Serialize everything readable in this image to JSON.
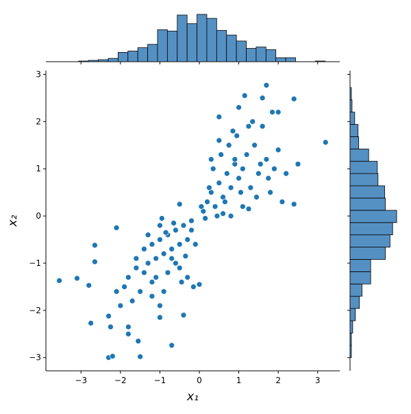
{
  "chart_data": {
    "type": "scatter",
    "xlabel": "x₁",
    "ylabel": "x₂",
    "xlim": [
      -3.89,
      3.56
    ],
    "ylim": [
      -3.28,
      3.08
    ],
    "xticks": [
      {
        "value": -3,
        "label": "−3"
      },
      {
        "value": -2,
        "label": "−2"
      },
      {
        "value": -1,
        "label": "−1"
      },
      0,
      1,
      2,
      3
    ],
    "yticks": [
      {
        "value": -3,
        "label": "−3"
      },
      {
        "value": -2,
        "label": "−2"
      },
      {
        "value": -1,
        "label": "−1"
      },
      0,
      1,
      2,
      3
    ],
    "series": [
      {
        "color": "#1f77b4",
        "x": [
          -3.55,
          -3.1,
          -2.8,
          -2.75,
          -2.65,
          -2.65,
          -2.3,
          -2.3,
          -2.2,
          -2.25,
          -1.5,
          -1.55,
          -0.7,
          -1.8,
          -1.8,
          3.2,
          2.4,
          1.7,
          1.15,
          2.5,
          2.4,
          2.1,
          1.85,
          1.0,
          0.5,
          -2.1,
          -1.0,
          -0.4,
          -0.15,
          0.0,
          -0.3,
          1.6,
          2.0,
          2.2,
          1.8,
          1.25,
          0.8,
          -0.5,
          -0.2,
          -1.2,
          -1.0,
          -0.8,
          -0.6,
          -0.4,
          -1.1,
          -0.9,
          -0.7,
          -0.5,
          -1.3,
          -1.4,
          -1.6,
          -1.2,
          -0.8,
          -0.6,
          -1.0,
          -0.3,
          -0.2,
          -1.5,
          -1.7,
          -1.9,
          -2.0,
          -1.3,
          -1.1,
          -0.9,
          -0.7,
          -0.5,
          -1.4,
          -1.2,
          -0.95,
          -0.65,
          -0.35,
          -0.1,
          -1.8,
          -1.6,
          -2.1,
          -1.0,
          -0.85,
          -0.45,
          0.3,
          0.5,
          0.7,
          0.9,
          1.1,
          0.4,
          0.6,
          0.8,
          1.0,
          1.2,
          0.2,
          0.35,
          0.55,
          0.75,
          0.95,
          1.3,
          1.5,
          1.7,
          1.4,
          1.6,
          0.1,
          0.25,
          0.45,
          0.65,
          0.85,
          1.05,
          1.25,
          1.45,
          1.9,
          2.0,
          0.15,
          0.5,
          0.9,
          1.35,
          1.75,
          0.05,
          0.3,
          0.6,
          1.1,
          1.55
        ],
        "values": [
          -1.37,
          -1.32,
          -1.47,
          -2.27,
          -0.62,
          -0.97,
          -2.12,
          -3.0,
          -2.97,
          -2.35,
          -2.98,
          -2.65,
          -2.74,
          -2.35,
          -2.5,
          1.56,
          2.48,
          2.77,
          2.55,
          1.1,
          0.25,
          0.3,
          2.2,
          2.3,
          2.1,
          -0.25,
          -2.15,
          -2.1,
          -1.5,
          -1.45,
          -1.3,
          2.5,
          2.2,
          0.9,
          0.5,
          0.15,
          0.0,
          0.25,
          -0.3,
          -0.6,
          -0.5,
          -0.4,
          -0.3,
          -0.2,
          -0.9,
          -0.8,
          -0.7,
          -0.6,
          -1.0,
          -1.2,
          -1.1,
          -1.4,
          -1.2,
          -1.0,
          -0.2,
          -0.5,
          -0.1,
          -1.6,
          -1.8,
          -1.5,
          -1.9,
          -0.4,
          -1.3,
          -1.6,
          -0.9,
          -1.1,
          -0.7,
          -1.7,
          -0.05,
          -0.15,
          -0.85,
          -0.6,
          -1.3,
          -0.9,
          -1.6,
          -1.9,
          -0.35,
          -1.4,
          0.5,
          0.7,
          0.9,
          1.1,
          1.0,
          0.2,
          0.4,
          0.6,
          0.8,
          1.3,
          0.3,
          1.0,
          1.3,
          1.5,
          1.7,
          0.6,
          0.9,
          1.2,
          1.5,
          1.9,
          0.1,
          0.6,
          0.0,
          0.3,
          1.8,
          0.5,
          1.9,
          0.4,
          1.0,
          1.4,
          -0.05,
          1.6,
          1.2,
          2.0,
          0.8,
          0.2,
          1.2,
          0.05,
          0.2,
          1.1
        ]
      }
    ],
    "top_hist": {
      "bins": [
        -3.56,
        -3.31,
        -3.06,
        -2.81,
        -2.56,
        -2.31,
        -2.06,
        -1.81,
        -1.56,
        -1.31,
        -1.06,
        -0.81,
        -0.56,
        -0.31,
        -0.06,
        0.19,
        0.44,
        0.69,
        0.94,
        1.19,
        1.44,
        1.69,
        1.94,
        2.19,
        2.44,
        2.69,
        2.94,
        3.19
      ],
      "values": [
        0,
        0,
        1,
        2,
        3,
        5,
        14,
        16,
        21,
        26,
        48,
        46,
        70,
        57,
        71,
        65,
        47,
        40,
        31,
        20,
        22,
        18,
        6,
        6,
        0,
        0,
        1
      ],
      "ylim": [
        0,
        72
      ]
    },
    "right_hist": {
      "bins": [
        -3.0,
        -2.74,
        -2.48,
        -2.22,
        -1.96,
        -1.7,
        -1.44,
        -1.18,
        -0.92,
        -0.66,
        -0.4,
        -0.14,
        0.12,
        0.38,
        0.64,
        0.9,
        1.16,
        1.42,
        1.68,
        1.94,
        2.2,
        2.46,
        2.72
      ],
      "values": [
        2,
        2,
        4,
        8,
        14,
        18,
        31,
        31,
        53,
        60,
        64,
        70,
        53,
        52,
        42,
        41,
        28,
        13,
        12,
        7,
        3,
        2
      ],
      "xlim": [
        0,
        72
      ]
    },
    "bar_color": "#5590c2"
  }
}
